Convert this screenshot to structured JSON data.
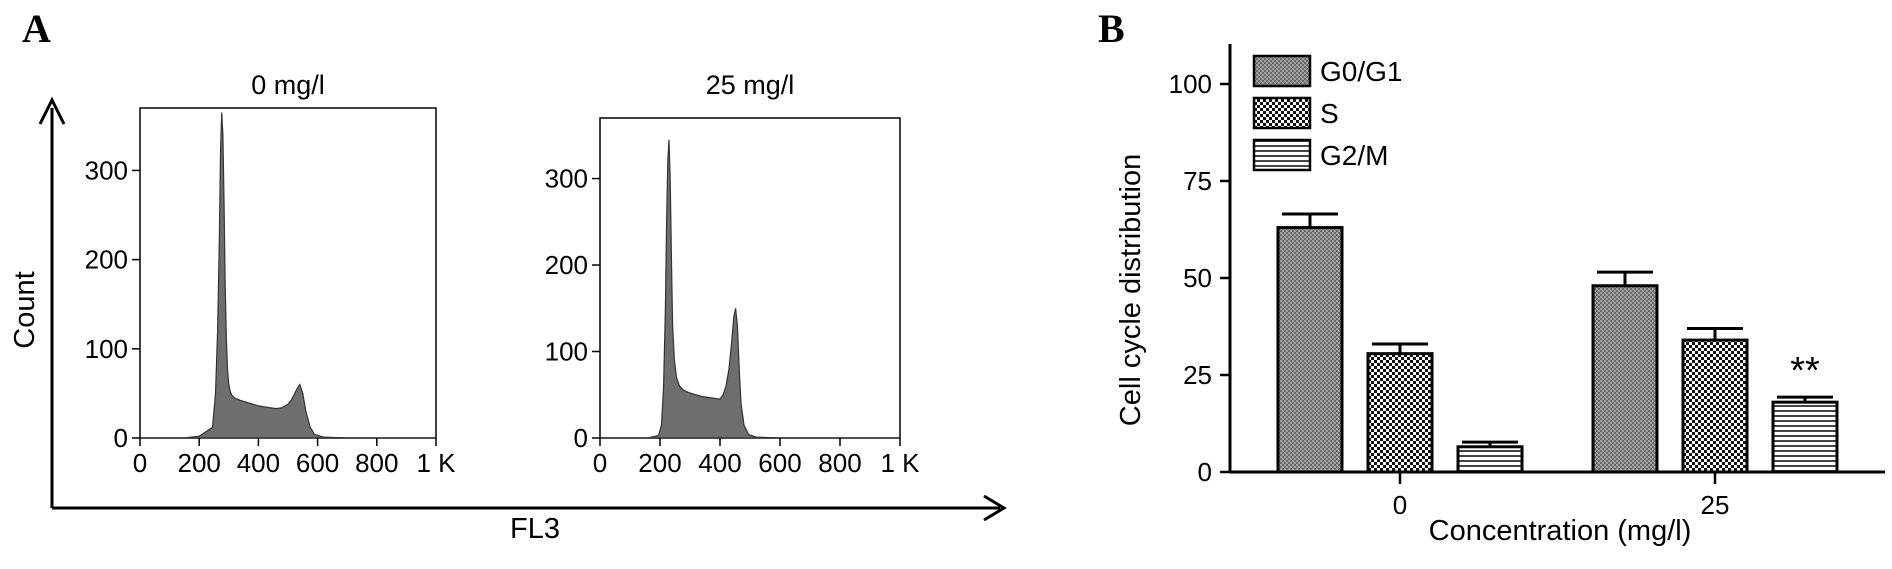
{
  "panel_a_letter": "A",
  "panel_b_letter": "B",
  "shared_axes": {
    "ylabel": "Count",
    "xlabel": "FL3"
  },
  "chart_data": [
    {
      "type": "area",
      "title": "0 mg/l",
      "xticks": [
        "0",
        "200",
        "400",
        "600",
        "800",
        "1 K"
      ],
      "yticks": [
        "0",
        "100",
        "200",
        "300"
      ],
      "xlim": [
        0,
        1000
      ],
      "ylim": [
        0,
        370
      ],
      "x": [
        0,
        150,
        200,
        245,
        255,
        262,
        268,
        272,
        276,
        280,
        284,
        288,
        292,
        296,
        300,
        305,
        310,
        320,
        340,
        360,
        380,
        400,
        420,
        440,
        460,
        480,
        500,
        510,
        520,
        530,
        540,
        550,
        560,
        575,
        590,
        620,
        700,
        1000
      ],
      "values": [
        0,
        0,
        2,
        12,
        50,
        120,
        220,
        320,
        365,
        340,
        260,
        170,
        110,
        75,
        60,
        52,
        48,
        45,
        42,
        40,
        38,
        36,
        35,
        34,
        33,
        34,
        38,
        42,
        48,
        55,
        60,
        50,
        30,
        12,
        4,
        1,
        0,
        0
      ]
    },
    {
      "type": "area",
      "title": "25 mg/l",
      "xticks": [
        "0",
        "200",
        "400",
        "600",
        "800",
        "1 K"
      ],
      "yticks": [
        "0",
        "100",
        "200",
        "300"
      ],
      "xlim": [
        0,
        1000
      ],
      "ylim": [
        0,
        370
      ],
      "x": [
        0,
        160,
        195,
        205,
        212,
        218,
        222,
        226,
        230,
        234,
        238,
        242,
        248,
        255,
        265,
        280,
        300,
        320,
        340,
        360,
        380,
        400,
        410,
        420,
        430,
        440,
        446,
        452,
        458,
        464,
        470,
        480,
        495,
        520,
        600,
        1000
      ],
      "values": [
        0,
        0,
        3,
        15,
        60,
        150,
        250,
        320,
        345,
        300,
        210,
        130,
        90,
        70,
        60,
        55,
        52,
        50,
        48,
        47,
        46,
        45,
        50,
        60,
        80,
        115,
        140,
        150,
        130,
        80,
        40,
        15,
        4,
        1,
        0,
        0
      ]
    },
    {
      "type": "bar",
      "xlabel": "Concentration (mg/l)",
      "ylabel": "Cell cycle distribution",
      "ylim": [
        0,
        100
      ],
      "yticks": [
        "0",
        "25",
        "50",
        "75",
        "100"
      ],
      "categories": [
        "0",
        "25"
      ],
      "series": [
        {
          "name": "G0/G1",
          "values": [
            63,
            48
          ],
          "errors": [
            3.5,
            3.5
          ]
        },
        {
          "name": "S",
          "values": [
            30.5,
            34
          ],
          "errors": [
            2.5,
            3
          ]
        },
        {
          "name": "G2/M",
          "values": [
            6.5,
            18
          ],
          "errors": [
            1.2,
            1.3
          ]
        }
      ],
      "annotation": {
        "text": "**",
        "series": "G2/M",
        "category": "25"
      },
      "legend_position": "top-left"
    }
  ]
}
